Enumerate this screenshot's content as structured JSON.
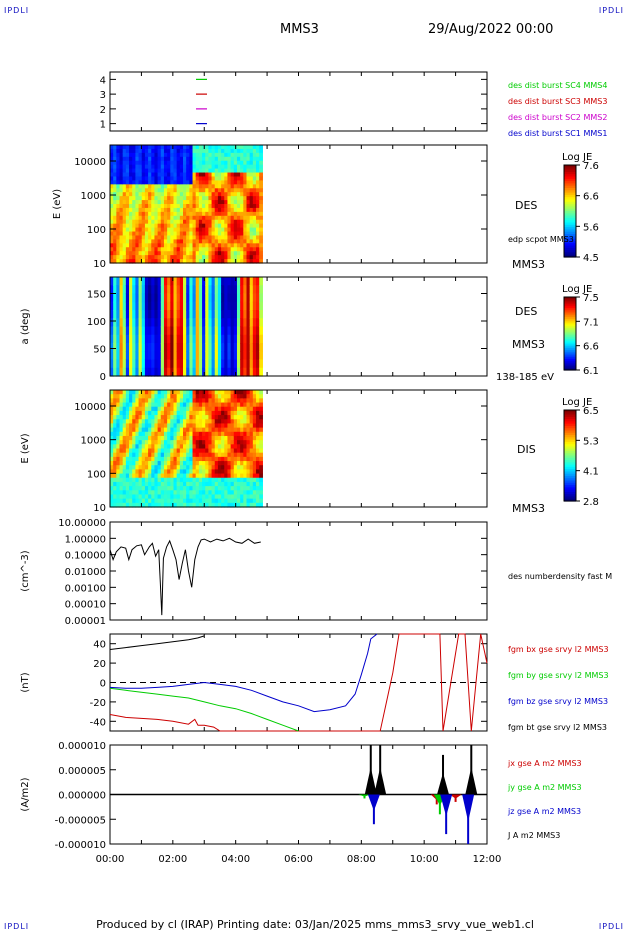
{
  "corner_label": "IPDLI",
  "header": {
    "spacecraft": "MMS3",
    "date": "29/Aug/2022 00:00"
  },
  "footer": "Produced by cl (IRAP)   Printing date: 03/Jan/2025   mms_mms3_srvy_vue_web1.cl",
  "x_ticks": [
    "00:00",
    "02:00",
    "04:00",
    "06:00",
    "08:00",
    "10:00",
    "12:00"
  ],
  "colors": {
    "mms1": "#0000cc",
    "mms2": "#cc00cc",
    "mms3": "#cc0000",
    "mms4": "#00cc00",
    "bt": "#000000"
  },
  "chart_data": [
    {
      "type": "line",
      "panel": "spacecraft-legend",
      "y_ticks": [
        "1",
        "2",
        "3",
        "4"
      ],
      "ylim": [
        0.5,
        4.5
      ],
      "series": [
        {
          "name": "des dist burst SC1 MMS1",
          "y": 1,
          "color": "#0000cc"
        },
        {
          "name": "des dist burst SC2 MMS2",
          "y": 2,
          "color": "#cc00cc"
        },
        {
          "name": "des dist burst SC3 MMS3",
          "y": 3,
          "color": "#cc0000"
        },
        {
          "name": "des dist burst SC4 MMS4",
          "y": 4,
          "color": "#00cc00"
        }
      ]
    },
    {
      "type": "heatmap",
      "panel": "des-energy",
      "ylabel": "E (eV)",
      "y_ticks": [
        "10",
        "100",
        "1000",
        "10000"
      ],
      "x_end_hours": 4.85,
      "label": "DES",
      "sublabel": "edp scpot MMS3",
      "corner": "MMS3",
      "colorbar": {
        "title": "Log JE",
        "ticks": [
          "7.6",
          "6.6",
          "5.6",
          "4.5"
        ]
      }
    },
    {
      "type": "heatmap",
      "panel": "des-pitch",
      "ylabel": "a (deg)",
      "y_ticks": [
        "0",
        "50",
        "100",
        "150"
      ],
      "ylim": [
        0,
        180
      ],
      "x_end_hours": 4.85,
      "label": "DES",
      "sublabel": "MMS3",
      "corner": "138-185 eV",
      "colorbar": {
        "title": "Log JE",
        "ticks": [
          "7.5",
          "7.1",
          "6.6",
          "6.1"
        ]
      }
    },
    {
      "type": "heatmap",
      "panel": "dis-energy",
      "ylabel": "E (eV)",
      "y_ticks": [
        "10",
        "100",
        "1000",
        "10000"
      ],
      "x_end_hours": 4.85,
      "label": "DIS",
      "corner": "MMS3",
      "colorbar": {
        "title": "Log JE",
        "ticks": [
          "6.5",
          "5.3",
          "4.1",
          "2.8"
        ]
      }
    },
    {
      "type": "line",
      "panel": "number-density",
      "ylabel": "(cm^-3)",
      "y_ticks": [
        "0.00001",
        "0.00010",
        "0.00100",
        "0.01000",
        "0.10000",
        "1.00000",
        "10.00000"
      ],
      "ylim_log10": [
        -5,
        1
      ],
      "series": [
        {
          "name": "des numberdensity fast M",
          "color": "#000000",
          "x": [
            0.0,
            0.1,
            0.2,
            0.35,
            0.5,
            0.6,
            0.7,
            0.85,
            1.0,
            1.1,
            1.25,
            1.35,
            1.45,
            1.55,
            1.6,
            1.65,
            1.7,
            1.8,
            1.9,
            2.0,
            2.1,
            2.2,
            2.3,
            2.4,
            2.5,
            2.6,
            2.7,
            2.8,
            2.9,
            3.0,
            3.2,
            3.4,
            3.6,
            3.8,
            4.0,
            4.2,
            4.4,
            4.6,
            4.8
          ],
          "y": [
            0.2,
            0.05,
            0.15,
            0.3,
            0.25,
            0.05,
            0.2,
            0.35,
            0.4,
            0.1,
            0.3,
            0.5,
            0.08,
            0.2,
            0.002,
            2e-05,
            0.06,
            0.3,
            0.7,
            0.2,
            0.05,
            0.003,
            0.03,
            0.2,
            0.01,
            0.001,
            0.05,
            0.3,
            0.8,
            0.9,
            0.6,
            0.9,
            0.7,
            1.0,
            0.6,
            0.5,
            0.9,
            0.5,
            0.6
          ]
        }
      ]
    },
    {
      "type": "line",
      "panel": "magnetic-field",
      "ylabel": "(nT)",
      "y_ticks": [
        "-40",
        "-20",
        "0",
        "20",
        "40"
      ],
      "ylim": [
        -50,
        50
      ],
      "series": [
        {
          "name": "fgm bt gse srvy l2 MMS3",
          "color": "#000000",
          "x": [
            0.0,
            0.5,
            1.0,
            1.5,
            2.0,
            2.5,
            2.8,
            3.0
          ],
          "y": [
            34,
            36,
            38,
            40,
            42,
            44,
            46,
            48
          ]
        },
        {
          "name": "fgm bx gse srvy l2 MMS3",
          "color": "#cc0000",
          "x": [
            0.0,
            0.5,
            1.0,
            1.5,
            2.0,
            2.5,
            2.7,
            2.8,
            3.0,
            3.3,
            3.5,
            8.6,
            8.8,
            9.0,
            9.2,
            10.5,
            10.6,
            11.1,
            11.3,
            11.5,
            11.8,
            12.0
          ],
          "y": [
            -33,
            -36,
            -37,
            -38,
            -40,
            -43,
            -38,
            -44,
            -44,
            -46,
            -50,
            -50,
            -20,
            10,
            50,
            50,
            -50,
            50,
            50,
            -50,
            50,
            20
          ]
        },
        {
          "name": "fgm by gse srvy l2 MMS3",
          "color": "#00cc00",
          "x": [
            0.0,
            0.5,
            1.0,
            1.5,
            2.0,
            2.5,
            3.0,
            3.5,
            4.0,
            4.5,
            5.0,
            5.5,
            6.0
          ],
          "y": [
            -6,
            -8,
            -10,
            -12,
            -14,
            -16,
            -20,
            -24,
            -27,
            -32,
            -38,
            -44,
            -50
          ]
        },
        {
          "name": "fgm bz gse srvy l2 MMS3",
          "color": "#0000cc",
          "x": [
            0.0,
            0.5,
            1.0,
            1.5,
            2.0,
            2.5,
            3.0,
            3.5,
            4.0,
            4.5,
            5.0,
            5.5,
            6.0,
            6.5,
            7.0,
            7.5,
            7.8,
            8.0,
            8.2,
            8.3,
            8.5
          ],
          "y": [
            -5,
            -6,
            -6,
            -5,
            -4,
            -2,
            0,
            -2,
            -4,
            -8,
            -14,
            -20,
            -24,
            -30,
            -28,
            -24,
            -12,
            8,
            30,
            45,
            50
          ]
        }
      ]
    },
    {
      "type": "line",
      "panel": "current-density",
      "ylabel": "(A/m2)",
      "y_ticks": [
        "-0.000010",
        "-0.000005",
        "0.000000",
        "0.000005",
        "0.000010"
      ],
      "ylim": [
        -1e-05,
        1e-05
      ],
      "series": [
        {
          "name": "jx gse A m2 MMS3",
          "color": "#cc0000",
          "peaks": [
            [
              8.4,
              -2e-06
            ],
            [
              10.4,
              -2e-06
            ],
            [
              11.0,
              -1.5e-06
            ]
          ]
        },
        {
          "name": "jy gse A m2 MMS3",
          "color": "#00cc00",
          "peaks": [
            [
              8.1,
              -8e-07
            ],
            [
              10.5,
              -4e-06
            ]
          ]
        },
        {
          "name": "jz gse A m2 MMS3",
          "color": "#0000cc",
          "peaks": [
            [
              8.4,
              -6e-06
            ],
            [
              10.7,
              -8e-06
            ],
            [
              11.4,
              -1e-05
            ]
          ]
        },
        {
          "name": "J A m2 MMS3",
          "color": "#000000",
          "peaks": [
            [
              8.3,
              1e-05
            ],
            [
              8.6,
              1e-05
            ],
            [
              10.6,
              8e-06
            ],
            [
              11.5,
              1e-05
            ]
          ]
        }
      ]
    }
  ]
}
